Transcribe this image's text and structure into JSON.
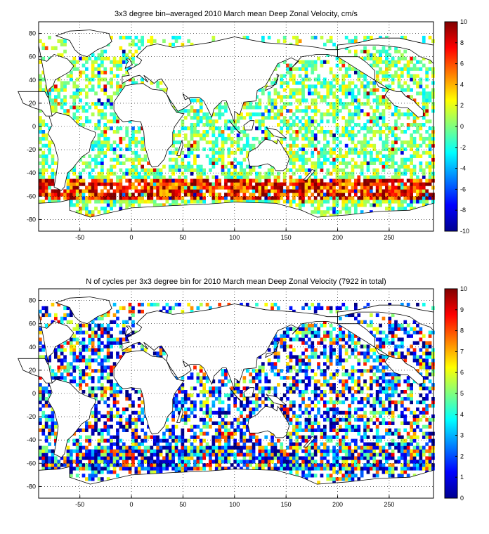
{
  "chart_data": [
    {
      "type": "heatmap",
      "title": "3x3 degree bin–averaged 2010 March mean Deep Zonal Velocity, cm/s",
      "xlabel": "",
      "ylabel": "",
      "xlim": [
        -90,
        293
      ],
      "ylim": [
        -90,
        90
      ],
      "x_ticks": [
        -50,
        0,
        50,
        100,
        150,
        200,
        250
      ],
      "y_ticks": [
        -80,
        -60,
        -40,
        -20,
        0,
        20,
        40,
        60,
        80
      ],
      "grid": "dotted",
      "bin_size_deg": 3,
      "colorbar": {
        "min": -10,
        "max": 10,
        "ticks": [
          -10,
          -8,
          -6,
          -4,
          -2,
          0,
          2,
          4,
          6,
          8,
          10
        ],
        "colormap": "jet"
      }
    },
    {
      "type": "heatmap",
      "title": "N of cycles per 3x3 degree bin for 2010 March mean Deep Zonal Velocity (7922 in total)",
      "xlabel": "",
      "ylabel": "",
      "xlim": [
        -90,
        293
      ],
      "ylim": [
        -90,
        90
      ],
      "x_ticks": [
        -50,
        0,
        50,
        100,
        150,
        200,
        250
      ],
      "y_ticks": [
        -80,
        -60,
        -40,
        -20,
        0,
        20,
        40,
        60,
        80
      ],
      "grid": "dotted",
      "bin_size_deg": 3,
      "total_cycles": 7922,
      "colorbar": {
        "min": 0,
        "max": 10,
        "ticks": [
          0,
          1,
          2,
          3,
          4,
          5,
          6,
          7,
          8,
          9,
          10
        ],
        "colormap": "jet"
      }
    }
  ]
}
